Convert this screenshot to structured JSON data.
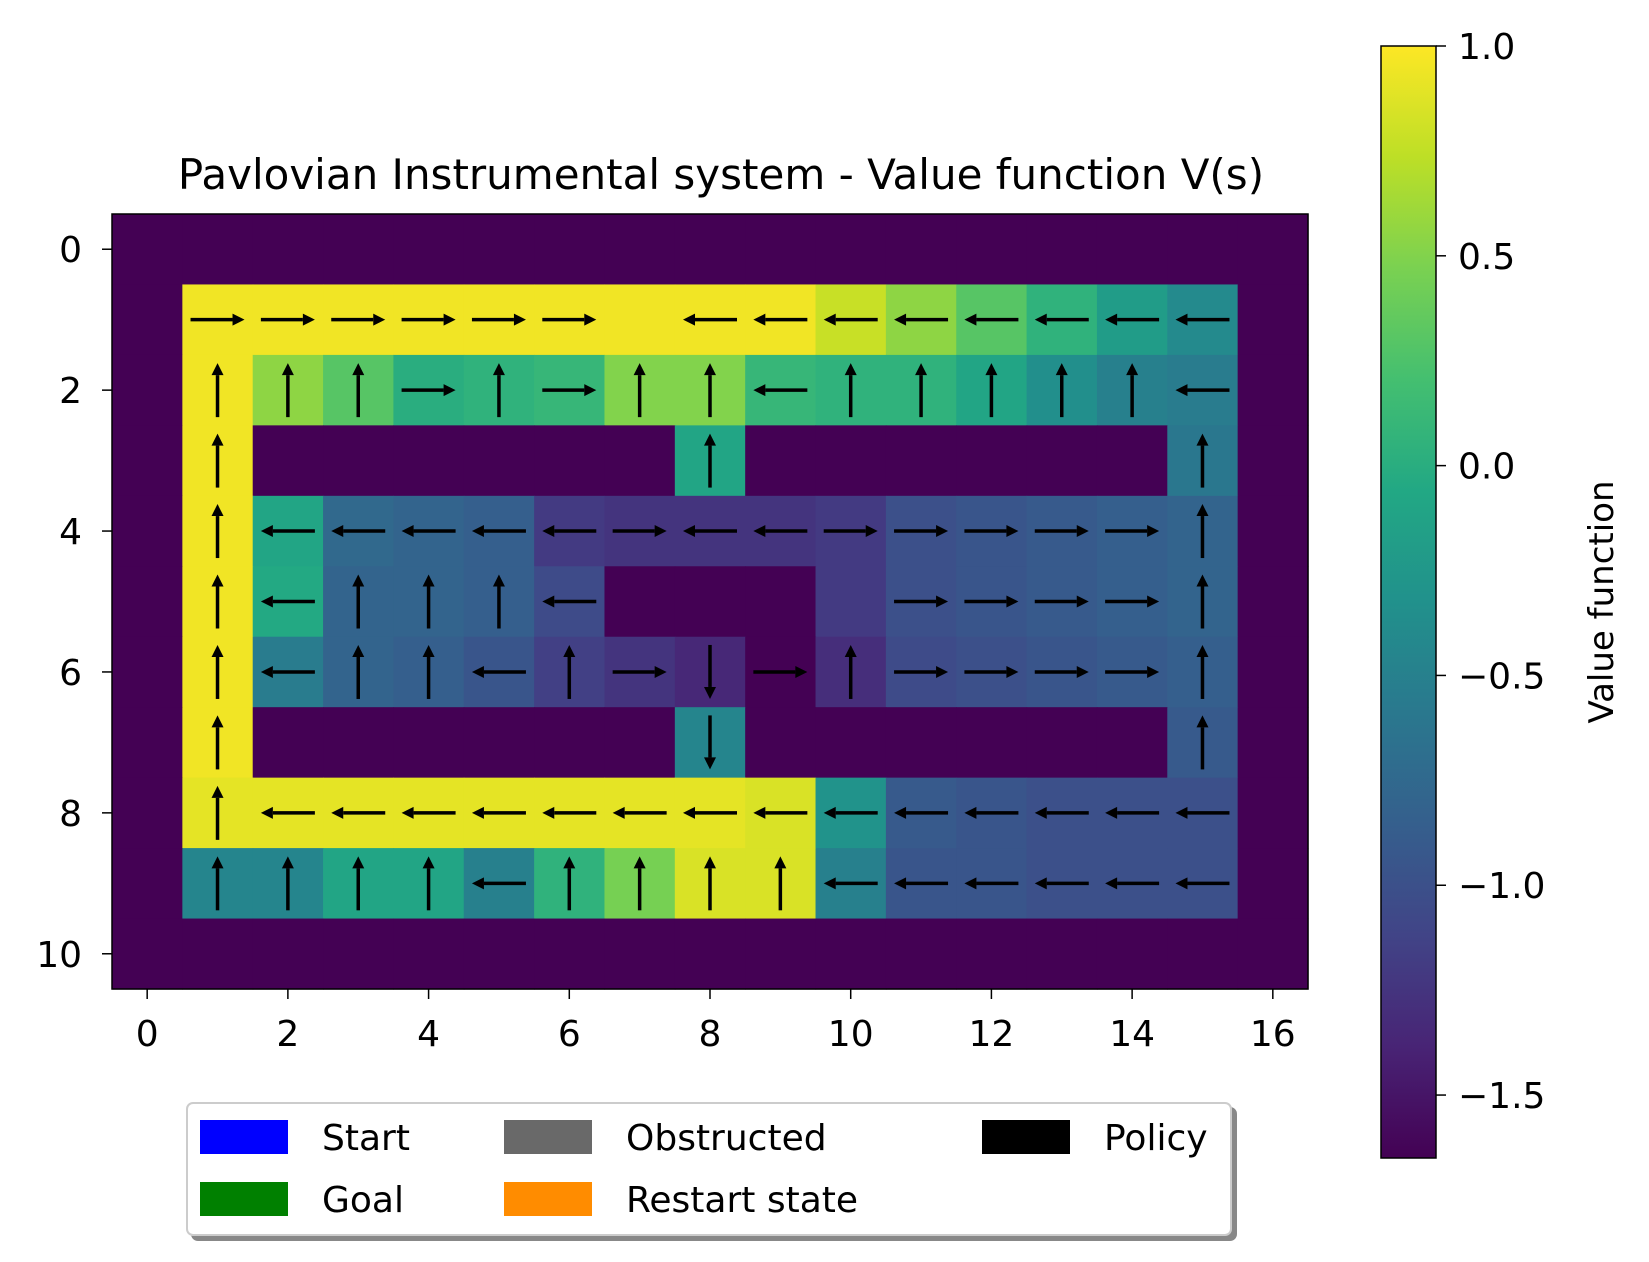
{
  "chart_data": {
    "type": "heatmap",
    "title": "Pavlovian Instrumental system - Value function V(s)",
    "xlabel": "",
    "ylabel": "",
    "x_ticks": [
      "0",
      "2",
      "4",
      "6",
      "8",
      "10",
      "12",
      "14",
      "16"
    ],
    "y_ticks": [
      "0",
      "2",
      "4",
      "6",
      "8",
      "10"
    ],
    "xlim": [
      -0.5,
      16.5
    ],
    "ylim": [
      10.5,
      -0.5
    ],
    "grid": false,
    "colormap": "viridis",
    "colorbar": {
      "label": "Value function",
      "vmin": -1.65,
      "vmax": 1.0,
      "ticks": [
        "1.0",
        "0.5",
        "0.0",
        "−0.5",
        "−1.0",
        "−1.5"
      ]
    },
    "values": [
      [
        -1.65,
        -1.65,
        -1.65,
        -1.65,
        -1.65,
        -1.65,
        -1.65,
        -1.65,
        -1.65,
        -1.65,
        -1.65,
        -1.65,
        -1.65,
        -1.65,
        -1.65,
        -1.65,
        -1.65
      ],
      [
        -1.65,
        0.95,
        0.95,
        0.95,
        0.95,
        0.95,
        0.95,
        0.95,
        0.95,
        0.95,
        0.78,
        0.55,
        0.3,
        0.05,
        -0.2,
        -0.4,
        -1.65
      ],
      [
        -1.65,
        0.95,
        0.55,
        0.3,
        0.0,
        0.05,
        0.1,
        0.5,
        0.5,
        0.1,
        0.05,
        0.05,
        -0.1,
        -0.35,
        -0.5,
        -0.55,
        -1.65
      ],
      [
        -1.65,
        0.95,
        -1.65,
        -1.65,
        -1.65,
        -1.65,
        -1.65,
        -1.65,
        -0.1,
        -1.65,
        -1.65,
        -1.65,
        -1.65,
        -1.65,
        -1.65,
        -0.6,
        -1.65
      ],
      [
        -1.65,
        0.95,
        -0.1,
        -0.75,
        -0.8,
        -0.85,
        -1.2,
        -1.25,
        -1.25,
        -1.25,
        -1.2,
        -1.0,
        -0.95,
        -0.9,
        -0.85,
        -0.8,
        -1.65
      ],
      [
        -1.65,
        0.95,
        -0.05,
        -0.8,
        -0.8,
        -0.85,
        -1.05,
        -1.65,
        -1.65,
        -1.65,
        -1.2,
        -1.0,
        -0.95,
        -0.9,
        -0.85,
        -0.8,
        -1.65
      ],
      [
        -1.65,
        0.95,
        -0.55,
        -0.8,
        -0.85,
        -0.95,
        -1.15,
        -1.25,
        -1.35,
        -1.65,
        -1.3,
        -1.05,
        -1.0,
        -0.95,
        -0.9,
        -0.85,
        -1.65
      ],
      [
        -1.65,
        0.95,
        -1.65,
        -1.65,
        -1.65,
        -1.65,
        -1.65,
        -1.65,
        -0.45,
        -1.65,
        -1.65,
        -1.65,
        -1.65,
        -1.65,
        -1.65,
        -0.9,
        -1.65
      ],
      [
        -1.65,
        0.9,
        0.9,
        0.9,
        0.9,
        0.9,
        0.9,
        0.9,
        0.9,
        0.85,
        -0.3,
        -0.9,
        -0.95,
        -1.0,
        -1.0,
        -1.0,
        -1.65
      ],
      [
        -1.65,
        -0.45,
        -0.45,
        -0.1,
        -0.1,
        -0.5,
        0.05,
        0.45,
        0.85,
        0.85,
        -0.5,
        -0.95,
        -0.95,
        -1.0,
        -1.0,
        -1.0,
        -1.65
      ],
      [
        -1.65,
        -1.65,
        -1.65,
        -1.65,
        -1.65,
        -1.65,
        -1.65,
        -1.65,
        -1.65,
        -1.65,
        -1.65,
        -1.65,
        -1.65,
        -1.65,
        -1.65,
        -1.65,
        -1.65
      ]
    ],
    "policy_arrows": [
      {
        "row": 1,
        "col": 1,
        "dir": "R"
      },
      {
        "row": 1,
        "col": 2,
        "dir": "R"
      },
      {
        "row": 1,
        "col": 3,
        "dir": "R"
      },
      {
        "row": 1,
        "col": 4,
        "dir": "R"
      },
      {
        "row": 1,
        "col": 5,
        "dir": "R"
      },
      {
        "row": 1,
        "col": 6,
        "dir": "R"
      },
      {
        "row": 1,
        "col": 8,
        "dir": "L"
      },
      {
        "row": 1,
        "col": 9,
        "dir": "L"
      },
      {
        "row": 1,
        "col": 10,
        "dir": "L"
      },
      {
        "row": 1,
        "col": 11,
        "dir": "L"
      },
      {
        "row": 1,
        "col": 12,
        "dir": "L"
      },
      {
        "row": 1,
        "col": 13,
        "dir": "L"
      },
      {
        "row": 1,
        "col": 14,
        "dir": "L"
      },
      {
        "row": 1,
        "col": 15,
        "dir": "L"
      },
      {
        "row": 2,
        "col": 1,
        "dir": "U"
      },
      {
        "row": 2,
        "col": 2,
        "dir": "U"
      },
      {
        "row": 2,
        "col": 3,
        "dir": "U"
      },
      {
        "row": 2,
        "col": 4,
        "dir": "R"
      },
      {
        "row": 2,
        "col": 5,
        "dir": "U"
      },
      {
        "row": 2,
        "col": 6,
        "dir": "R"
      },
      {
        "row": 2,
        "col": 7,
        "dir": "U"
      },
      {
        "row": 2,
        "col": 8,
        "dir": "U"
      },
      {
        "row": 2,
        "col": 9,
        "dir": "L"
      },
      {
        "row": 2,
        "col": 10,
        "dir": "U"
      },
      {
        "row": 2,
        "col": 11,
        "dir": "U"
      },
      {
        "row": 2,
        "col": 12,
        "dir": "U"
      },
      {
        "row": 2,
        "col": 13,
        "dir": "U"
      },
      {
        "row": 2,
        "col": 14,
        "dir": "U"
      },
      {
        "row": 2,
        "col": 15,
        "dir": "L"
      },
      {
        "row": 3,
        "col": 1,
        "dir": "U"
      },
      {
        "row": 3,
        "col": 8,
        "dir": "U"
      },
      {
        "row": 3,
        "col": 15,
        "dir": "U"
      },
      {
        "row": 4,
        "col": 1,
        "dir": "U"
      },
      {
        "row": 4,
        "col": 2,
        "dir": "L"
      },
      {
        "row": 4,
        "col": 3,
        "dir": "L"
      },
      {
        "row": 4,
        "col": 4,
        "dir": "L"
      },
      {
        "row": 4,
        "col": 5,
        "dir": "L"
      },
      {
        "row": 4,
        "col": 6,
        "dir": "L"
      },
      {
        "row": 4,
        "col": 7,
        "dir": "R"
      },
      {
        "row": 4,
        "col": 8,
        "dir": "L"
      },
      {
        "row": 4,
        "col": 9,
        "dir": "L"
      },
      {
        "row": 4,
        "col": 10,
        "dir": "R"
      },
      {
        "row": 4,
        "col": 11,
        "dir": "R"
      },
      {
        "row": 4,
        "col": 12,
        "dir": "R"
      },
      {
        "row": 4,
        "col": 13,
        "dir": "R"
      },
      {
        "row": 4,
        "col": 14,
        "dir": "R"
      },
      {
        "row": 4,
        "col": 15,
        "dir": "U"
      },
      {
        "row": 5,
        "col": 1,
        "dir": "U"
      },
      {
        "row": 5,
        "col": 2,
        "dir": "L"
      },
      {
        "row": 5,
        "col": 3,
        "dir": "U"
      },
      {
        "row": 5,
        "col": 4,
        "dir": "U"
      },
      {
        "row": 5,
        "col": 5,
        "dir": "U"
      },
      {
        "row": 5,
        "col": 6,
        "dir": "L"
      },
      {
        "row": 5,
        "col": 11,
        "dir": "R"
      },
      {
        "row": 5,
        "col": 12,
        "dir": "R"
      },
      {
        "row": 5,
        "col": 13,
        "dir": "R"
      },
      {
        "row": 5,
        "col": 14,
        "dir": "R"
      },
      {
        "row": 5,
        "col": 15,
        "dir": "U"
      },
      {
        "row": 6,
        "col": 1,
        "dir": "U"
      },
      {
        "row": 6,
        "col": 2,
        "dir": "L"
      },
      {
        "row": 6,
        "col": 3,
        "dir": "U"
      },
      {
        "row": 6,
        "col": 4,
        "dir": "U"
      },
      {
        "row": 6,
        "col": 5,
        "dir": "L"
      },
      {
        "row": 6,
        "col": 6,
        "dir": "U"
      },
      {
        "row": 6,
        "col": 7,
        "dir": "R"
      },
      {
        "row": 6,
        "col": 8,
        "dir": "D"
      },
      {
        "row": 6,
        "col": 9,
        "dir": "R"
      },
      {
        "row": 6,
        "col": 10,
        "dir": "U"
      },
      {
        "row": 6,
        "col": 11,
        "dir": "R"
      },
      {
        "row": 6,
        "col": 12,
        "dir": "R"
      },
      {
        "row": 6,
        "col": 13,
        "dir": "R"
      },
      {
        "row": 6,
        "col": 14,
        "dir": "R"
      },
      {
        "row": 6,
        "col": 15,
        "dir": "U"
      },
      {
        "row": 7,
        "col": 1,
        "dir": "U"
      },
      {
        "row": 7,
        "col": 8,
        "dir": "D"
      },
      {
        "row": 7,
        "col": 15,
        "dir": "U"
      },
      {
        "row": 8,
        "col": 1,
        "dir": "U"
      },
      {
        "row": 8,
        "col": 2,
        "dir": "L"
      },
      {
        "row": 8,
        "col": 3,
        "dir": "L"
      },
      {
        "row": 8,
        "col": 4,
        "dir": "L"
      },
      {
        "row": 8,
        "col": 5,
        "dir": "L"
      },
      {
        "row": 8,
        "col": 6,
        "dir": "L"
      },
      {
        "row": 8,
        "col": 7,
        "dir": "L"
      },
      {
        "row": 8,
        "col": 8,
        "dir": "L"
      },
      {
        "row": 8,
        "col": 9,
        "dir": "L"
      },
      {
        "row": 8,
        "col": 10,
        "dir": "L"
      },
      {
        "row": 8,
        "col": 11,
        "dir": "L"
      },
      {
        "row": 8,
        "col": 12,
        "dir": "L"
      },
      {
        "row": 8,
        "col": 13,
        "dir": "L"
      },
      {
        "row": 8,
        "col": 14,
        "dir": "L"
      },
      {
        "row": 8,
        "col": 15,
        "dir": "L"
      },
      {
        "row": 9,
        "col": 1,
        "dir": "U"
      },
      {
        "row": 9,
        "col": 2,
        "dir": "U"
      },
      {
        "row": 9,
        "col": 3,
        "dir": "U"
      },
      {
        "row": 9,
        "col": 4,
        "dir": "U"
      },
      {
        "row": 9,
        "col": 5,
        "dir": "L"
      },
      {
        "row": 9,
        "col": 6,
        "dir": "U"
      },
      {
        "row": 9,
        "col": 7,
        "dir": "U"
      },
      {
        "row": 9,
        "col": 8,
        "dir": "U"
      },
      {
        "row": 9,
        "col": 9,
        "dir": "U"
      },
      {
        "row": 9,
        "col": 10,
        "dir": "L"
      },
      {
        "row": 9,
        "col": 11,
        "dir": "L"
      },
      {
        "row": 9,
        "col": 12,
        "dir": "L"
      },
      {
        "row": 9,
        "col": 13,
        "dir": "L"
      },
      {
        "row": 9,
        "col": 14,
        "dir": "L"
      },
      {
        "row": 9,
        "col": 15,
        "dir": "L"
      }
    ],
    "legend": {
      "placement": "below",
      "entries": [
        {
          "label": "Start",
          "color": "#0000ff"
        },
        {
          "label": "Obstructed",
          "color": "#696969"
        },
        {
          "label": "Policy",
          "color": "#000000"
        },
        {
          "label": "Goal",
          "color": "#008000"
        },
        {
          "label": "Restart state",
          "color": "#ff8c00"
        }
      ]
    }
  }
}
